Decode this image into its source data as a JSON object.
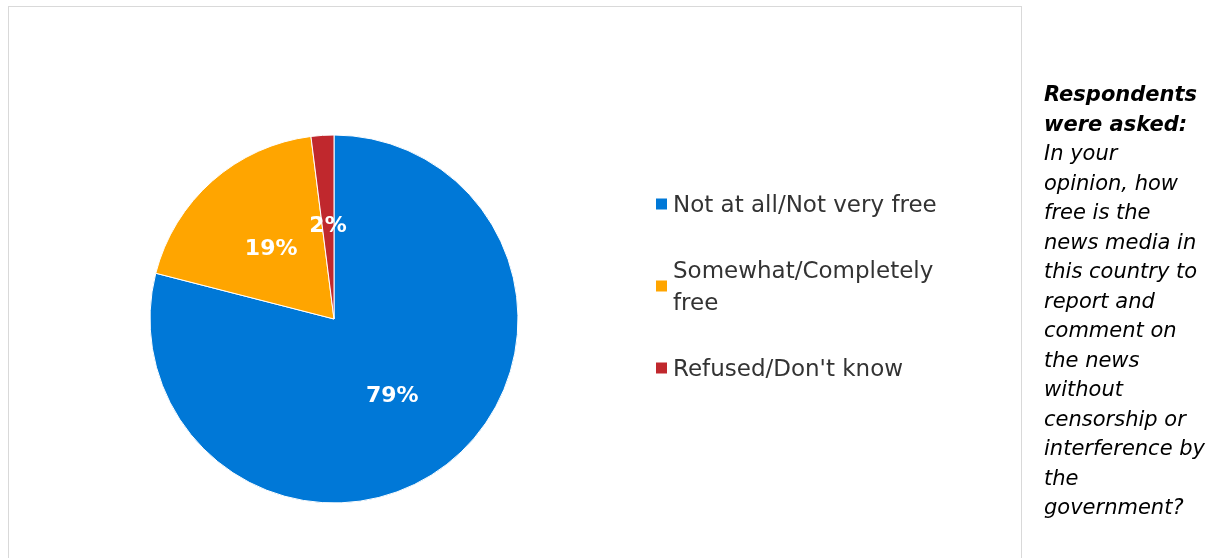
{
  "chart_data": {
    "type": "pie",
    "categories": [
      "Not at all/Not very free",
      "Somewhat/Completely free",
      "Refused/Don't know"
    ],
    "values": [
      79,
      19,
      2
    ],
    "colors": [
      "#0078d7",
      "#ffa500",
      "#c0282d"
    ],
    "value_labels": [
      "79%",
      "19%",
      "2%"
    ],
    "legend": "right",
    "annotations": [
      "Respondents were asked:",
      "In your opinion, how free is the news media in this country to report and comment on the news without censorship or interference by the government?"
    ]
  }
}
